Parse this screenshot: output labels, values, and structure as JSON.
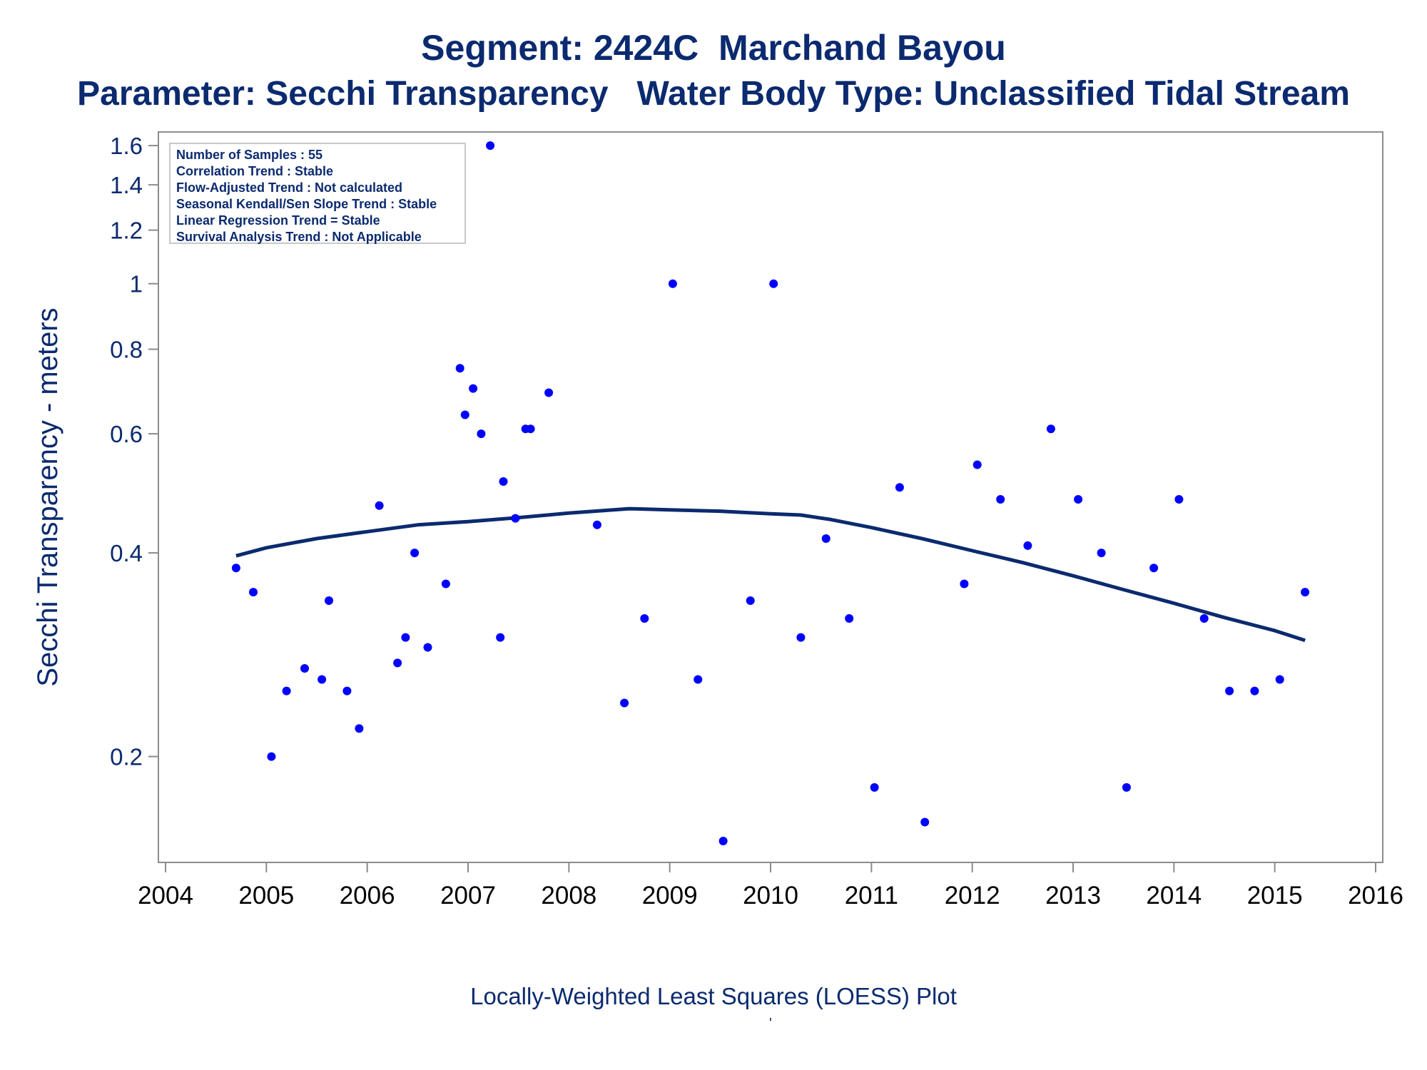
{
  "title": "Segment: 2424C  Marchand Bayou",
  "subtitle": "Parameter: Secchi Transparency   Water Body Type: Unclassified Tidal Stream",
  "footnote": "Locally-Weighted Least Squares (LOESS) Plot",
  "footnote_mark": "'",
  "stats": [
    "Number of Samples : 55",
    "Correlation Trend : Stable",
    "Flow-Adjusted Trend : Not calculated",
    "Seasonal Kendall/Sen Slope Trend : Stable",
    "Linear Regression Trend = Stable",
    "Survival Analysis Trend : Not Applicable"
  ],
  "colors": {
    "text": "#0b2a6f",
    "points": "#0000ff",
    "curve": "#0b2a6f",
    "axes": "#8c8c8c"
  },
  "chart_data": {
    "type": "scatter",
    "ylabel": "Secchi Transparency - meters",
    "xlabel": "",
    "y_scale": "log",
    "xlim": [
      2004,
      2016
    ],
    "ylim": [
      0.145,
      1.62
    ],
    "x_ticks": [
      2004,
      2005,
      2006,
      2007,
      2008,
      2009,
      2010,
      2011,
      2012,
      2013,
      2014,
      2015,
      2016
    ],
    "y_ticks": [
      0.2,
      0.4,
      0.6,
      0.8,
      1,
      1.2,
      1.4,
      1.6
    ],
    "grid": false,
    "series": [
      {
        "kind": "points",
        "points": [
          [
            2004.7,
            0.38
          ],
          [
            2004.87,
            0.35
          ],
          [
            2005.05,
            0.2
          ],
          [
            2005.2,
            0.25
          ],
          [
            2005.38,
            0.27
          ],
          [
            2005.55,
            0.26
          ],
          [
            2005.62,
            0.34
          ],
          [
            2005.8,
            0.25
          ],
          [
            2005.92,
            0.22
          ],
          [
            2006.12,
            0.47
          ],
          [
            2006.3,
            0.275
          ],
          [
            2006.38,
            0.3
          ],
          [
            2006.47,
            0.4
          ],
          [
            2006.6,
            0.29
          ],
          [
            2006.78,
            0.36
          ],
          [
            2006.92,
            0.75
          ],
          [
            2006.97,
            0.64
          ],
          [
            2007.05,
            0.7
          ],
          [
            2007.13,
            0.6
          ],
          [
            2007.22,
            1.6
          ],
          [
            2007.32,
            0.3
          ],
          [
            2007.35,
            0.51
          ],
          [
            2007.47,
            0.45
          ],
          [
            2007.57,
            0.61
          ],
          [
            2007.62,
            0.61
          ],
          [
            2007.8,
            0.69
          ],
          [
            2008.28,
            0.44
          ],
          [
            2008.55,
            0.24
          ],
          [
            2008.75,
            0.32
          ],
          [
            2009.03,
            1.0
          ],
          [
            2009.28,
            0.26
          ],
          [
            2009.53,
            0.15
          ],
          [
            2009.8,
            0.34
          ],
          [
            2010.03,
            1.0
          ],
          [
            2010.3,
            0.3
          ],
          [
            2010.55,
            0.42
          ],
          [
            2010.78,
            0.32
          ],
          [
            2011.03,
            0.18
          ],
          [
            2011.28,
            0.5
          ],
          [
            2011.53,
            0.16
          ],
          [
            2011.92,
            0.36
          ],
          [
            2012.05,
            0.54
          ],
          [
            2012.28,
            0.48
          ],
          [
            2012.55,
            0.41
          ],
          [
            2012.78,
            0.61
          ],
          [
            2013.05,
            0.48
          ],
          [
            2013.28,
            0.4
          ],
          [
            2013.53,
            0.18
          ],
          [
            2013.8,
            0.38
          ],
          [
            2014.05,
            0.48
          ],
          [
            2014.3,
            0.32
          ],
          [
            2014.55,
            0.25
          ],
          [
            2014.8,
            0.25
          ],
          [
            2015.05,
            0.26
          ],
          [
            2015.3,
            0.35
          ]
        ]
      },
      {
        "kind": "loess",
        "points": [
          [
            2004.7,
            0.396
          ],
          [
            2005.0,
            0.407
          ],
          [
            2005.5,
            0.42
          ],
          [
            2006.0,
            0.43
          ],
          [
            2006.5,
            0.44
          ],
          [
            2007.0,
            0.445
          ],
          [
            2007.5,
            0.451
          ],
          [
            2008.0,
            0.458
          ],
          [
            2008.6,
            0.465
          ],
          [
            2009.0,
            0.463
          ],
          [
            2009.5,
            0.461
          ],
          [
            2010.0,
            0.457
          ],
          [
            2010.3,
            0.455
          ],
          [
            2010.6,
            0.448
          ],
          [
            2011.0,
            0.436
          ],
          [
            2011.5,
            0.42
          ],
          [
            2012.0,
            0.403
          ],
          [
            2012.5,
            0.387
          ],
          [
            2013.0,
            0.37
          ],
          [
            2013.5,
            0.353
          ],
          [
            2014.0,
            0.337
          ],
          [
            2014.5,
            0.321
          ],
          [
            2015.0,
            0.307
          ],
          [
            2015.3,
            0.297
          ]
        ]
      }
    ]
  }
}
